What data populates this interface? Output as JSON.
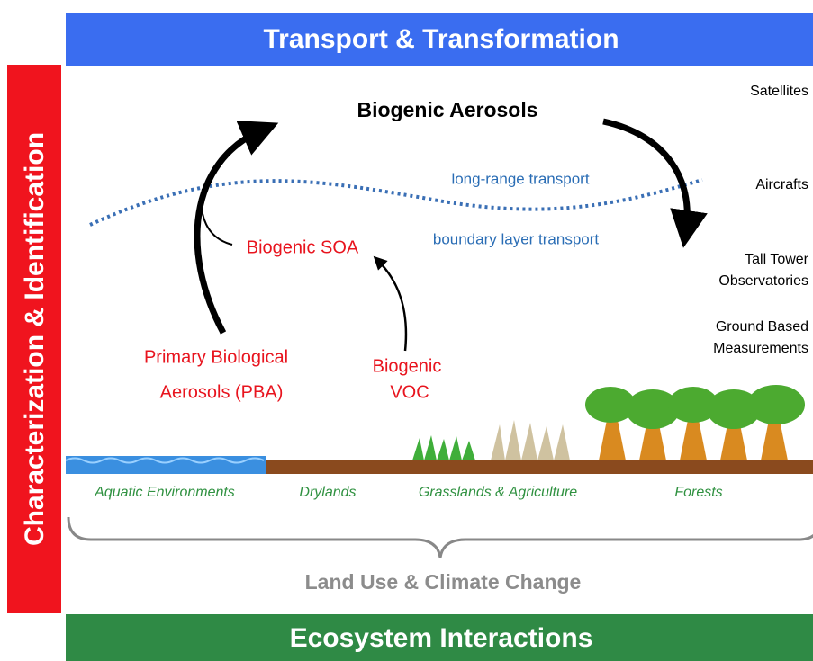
{
  "banners": {
    "top": "Transport & Transformation",
    "left": "Characterization & Identification",
    "bottom": "Ecosystem Interactions"
  },
  "center_title": "Biogenic Aerosols",
  "transport": {
    "long_range": "long-range transport",
    "boundary_layer": "boundary layer transport"
  },
  "sources": {
    "soa": "Biogenic SOA",
    "pba_line1": "Primary Biological",
    "pba_line2": "Aerosols (PBA)",
    "voc_line1": "Biogenic",
    "voc_line2": "VOC"
  },
  "observations": {
    "satellites": "Satellites",
    "aircrafts": "Aircrafts",
    "tower_line1": "Tall Tower",
    "tower_line2": "Observatories",
    "ground_line1": "Ground Based",
    "ground_line2": "Measurements"
  },
  "environments": [
    "Aquatic Environments",
    "Drylands",
    "Grasslands & Agriculture",
    "Forests"
  ],
  "brace_label": "Land Use & Climate Change"
}
